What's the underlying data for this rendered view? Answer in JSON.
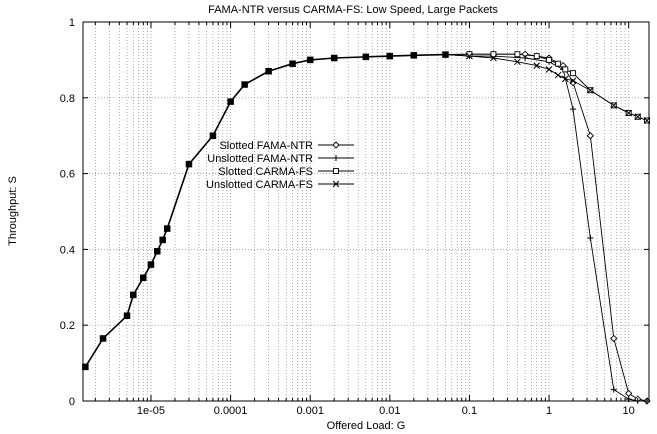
{
  "chart_data": {
    "type": "line",
    "title": "FAMA-NTR versus CARMA-FS: Low Speed, Large Packets",
    "xlabel": "Offered Load: G",
    "ylabel": "Throughput: S",
    "xscale": "log",
    "xlim": [
      1.4e-06,
      18
    ],
    "ylim": [
      0,
      1
    ],
    "grid": true,
    "legend_position": "center-left",
    "x_ticks": [
      {
        "value": 1e-05,
        "label": "1e-05"
      },
      {
        "value": 0.0001,
        "label": "0.0001"
      },
      {
        "value": 0.001,
        "label": "0.001"
      },
      {
        "value": 0.01,
        "label": "0.01"
      },
      {
        "value": 0.1,
        "label": "0.1"
      },
      {
        "value": 1,
        "label": "1"
      },
      {
        "value": 10,
        "label": "10"
      }
    ],
    "y_ticks": [
      {
        "value": 0,
        "label": "0"
      },
      {
        "value": 0.2,
        "label": "0.2"
      },
      {
        "value": 0.4,
        "label": "0.4"
      },
      {
        "value": 0.6,
        "label": "0.6"
      },
      {
        "value": 0.8,
        "label": "0.8"
      },
      {
        "value": 1,
        "label": "1"
      }
    ],
    "shared_x": [
      1.5e-06,
      2.5e-06,
      5e-06,
      6e-06,
      8e-06,
      1e-05,
      1.2e-05,
      1.4e-05,
      1.6e-05,
      3e-05,
      6e-05,
      0.0001,
      0.00015,
      0.0003,
      0.0006,
      0.001,
      0.002,
      0.005,
      0.01,
      0.02,
      0.05
    ],
    "shared_y": [
      0.09,
      0.165,
      0.225,
      0.28,
      0.325,
      0.36,
      0.395,
      0.425,
      0.455,
      0.625,
      0.7,
      0.79,
      0.835,
      0.87,
      0.89,
      0.9,
      0.905,
      0.908,
      0.91,
      0.912,
      0.914
    ],
    "series": [
      {
        "name": "Slotted FAMA-NTR",
        "marker": "diamond",
        "x": [
          0.1,
          0.2,
          0.5,
          1,
          1.5,
          2,
          3.3,
          6.5,
          10,
          13,
          17
        ],
        "y": [
          0.915,
          0.915,
          0.915,
          0.905,
          0.885,
          0.84,
          0.7,
          0.165,
          0.02,
          0.005,
          0
        ]
      },
      {
        "name": "Unslotted FAMA-NTR",
        "marker": "plus",
        "x": [
          0.1,
          0.2,
          0.5,
          1,
          1.5,
          2,
          3.3,
          6.5,
          10,
          13,
          17
        ],
        "y": [
          0.91,
          0.91,
          0.905,
          0.895,
          0.875,
          0.77,
          0.43,
          0.03,
          0.005,
          0,
          0
        ]
      },
      {
        "name": "Slotted CARMA-FS",
        "marker": "square",
        "x": [
          0.1,
          0.2,
          0.4,
          0.7,
          1,
          1.3,
          1.6,
          2,
          3.3,
          6.5,
          10,
          13,
          17
        ],
        "y": [
          0.915,
          0.915,
          0.915,
          0.91,
          0.9,
          0.89,
          0.875,
          0.865,
          0.82,
          0.78,
          0.76,
          0.75,
          0.74
        ]
      },
      {
        "name": "Unslotted CARMA-FS",
        "marker": "cross",
        "x": [
          0.1,
          0.2,
          0.4,
          0.7,
          1,
          1.3,
          1.6,
          2,
          3.3,
          6.5,
          10,
          13,
          17
        ],
        "y": [
          0.91,
          0.905,
          0.895,
          0.885,
          0.875,
          0.86,
          0.85,
          0.845,
          0.82,
          0.78,
          0.76,
          0.75,
          0.74
        ]
      }
    ]
  }
}
